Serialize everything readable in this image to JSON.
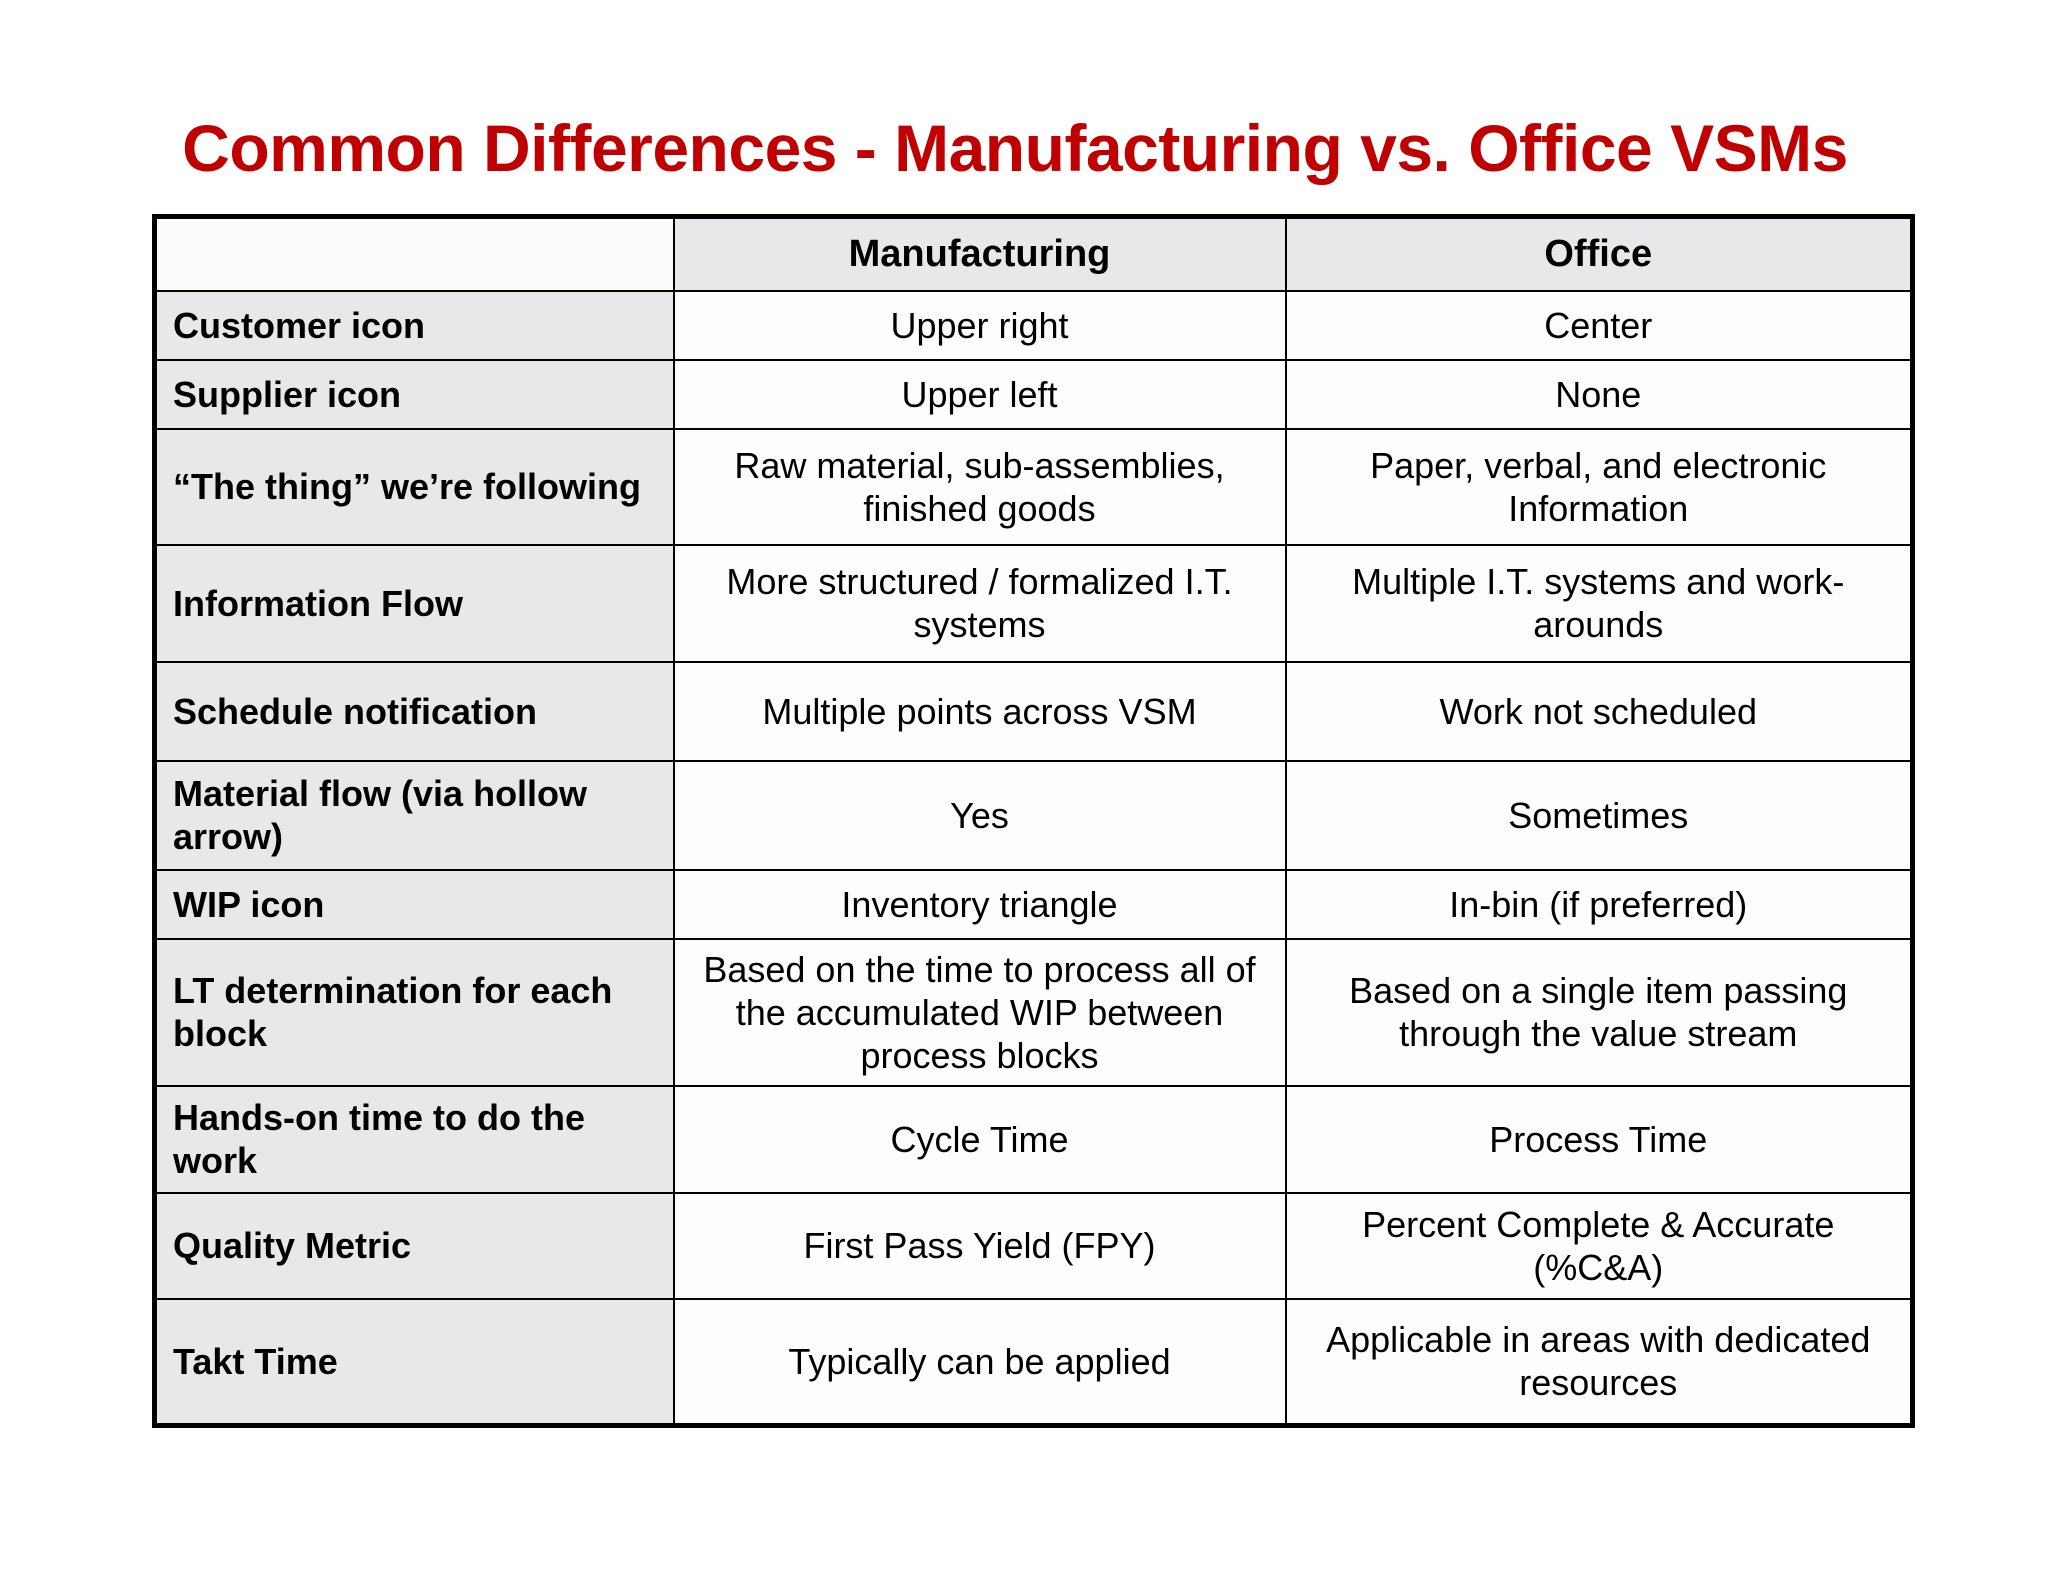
{
  "title": "Common Differences -  Manufacturing vs. Office VSMs",
  "table": {
    "headers": [
      "",
      "Manufacturing",
      "Office"
    ],
    "rows": [
      {
        "label": "Customer icon",
        "manufacturing": "Upper right",
        "office": "Center"
      },
      {
        "label": "Supplier icon",
        "manufacturing": "Upper left",
        "office": "None"
      },
      {
        "label": "“The thing” we’re following",
        "manufacturing": "Raw material, sub-assemblies, finished goods",
        "office": "Paper, verbal, and electronic Information"
      },
      {
        "label": "Information Flow",
        "manufacturing": "More structured / formalized I.T. systems",
        "office": "Multiple I.T. systems and work-arounds"
      },
      {
        "label": "Schedule notification",
        "manufacturing": "Multiple points across VSM",
        "office": "Work not scheduled"
      },
      {
        "label": "Material flow (via hollow arrow)",
        "manufacturing": "Yes",
        "office": "Sometimes"
      },
      {
        "label": "WIP icon",
        "manufacturing": "Inventory triangle",
        "office": "In-bin (if preferred)"
      },
      {
        "label": "LT determination for each block",
        "manufacturing": "Based on the time to process all of the accumulated WIP between process blocks",
        "office": "Based on a single item passing through the value stream"
      },
      {
        "label": "Hands-on time to do the work",
        "manufacturing": "Cycle Time",
        "office": "Process Time"
      },
      {
        "label": "Quality Metric",
        "manufacturing": "First Pass Yield (FPY)",
        "office": "Percent Complete & Accurate (%C&A)"
      },
      {
        "label": "Takt Time",
        "manufacturing": "Typically can be applied",
        "office": "Applicable in areas with dedicated resources"
      }
    ]
  },
  "colors": {
    "title": "#c00000",
    "header_bg": "#e8e8ea",
    "border": "#000000"
  }
}
